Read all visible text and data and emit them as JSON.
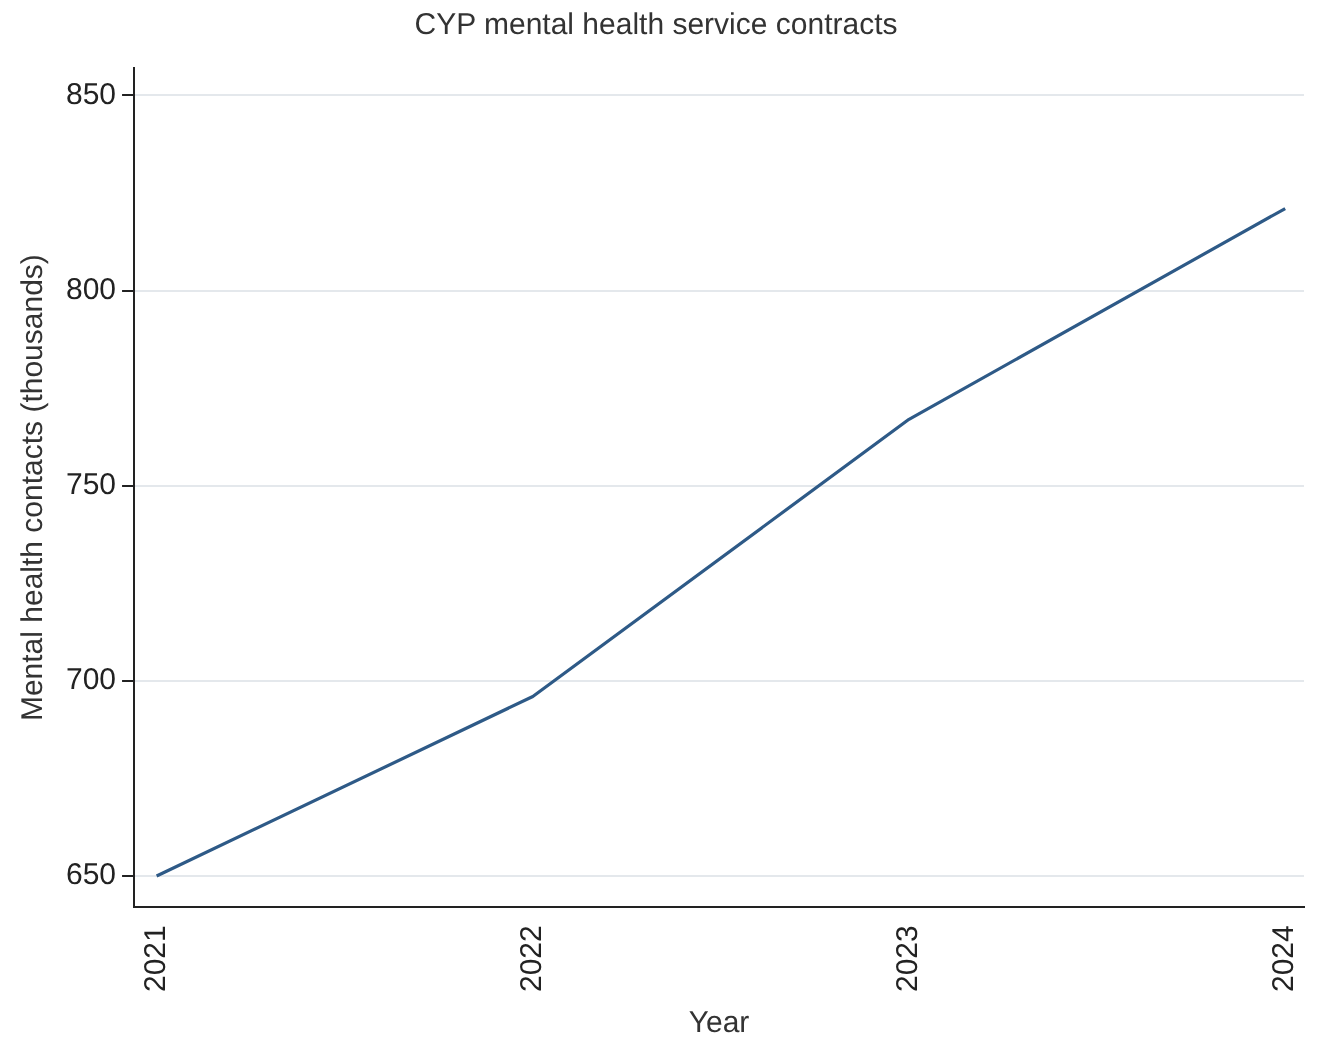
{
  "chart_data": {
    "type": "line",
    "title": "CYP mental health service contracts",
    "xlabel": "Year",
    "ylabel": "Mental health contacts (thousands)",
    "x": [
      2021,
      2022,
      2023,
      2024
    ],
    "series": [
      {
        "color": "#2e5a87",
        "values": [
          650,
          696,
          767,
          821
        ]
      }
    ],
    "xlim": [
      2020.94,
      2024.05
    ],
    "xticks": [
      2021,
      2022,
      2023,
      2024
    ],
    "ylim": [
      642,
      857
    ],
    "yticks": [
      650,
      700,
      750,
      800,
      850
    ],
    "grid": "y",
    "legend": false,
    "marker": "none",
    "line_style": "solid"
  }
}
